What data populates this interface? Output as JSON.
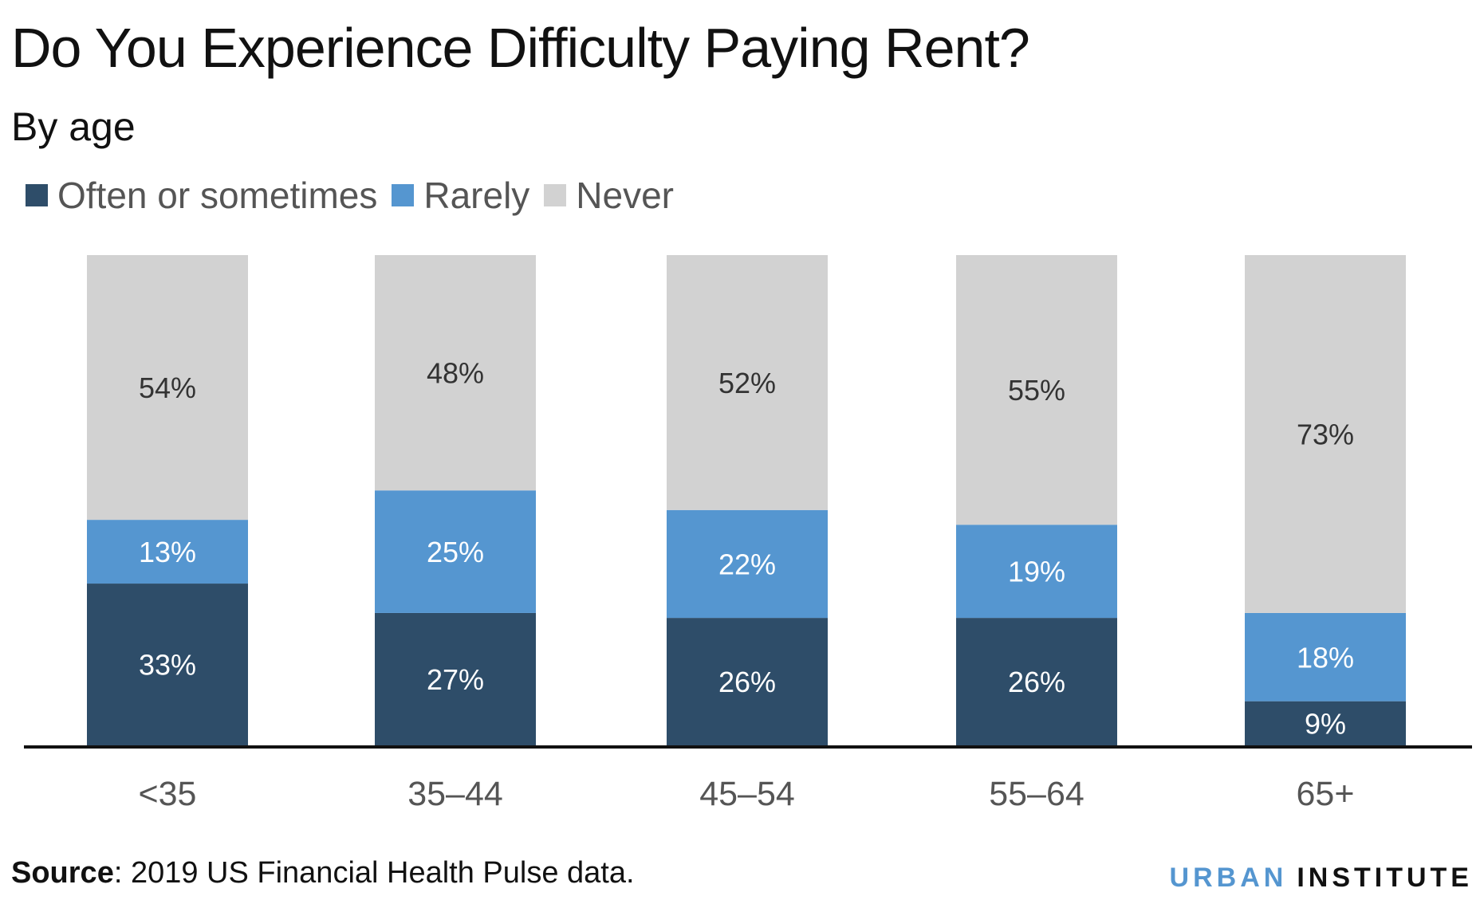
{
  "chart_data": {
    "type": "bar",
    "stacked": true,
    "title": "Do You Experience Difficulty Paying Rent?",
    "subtitle": "By age",
    "categories": [
      "<35",
      "35–44",
      "45–54",
      "55–64",
      "65+"
    ],
    "series": [
      {
        "name": "Often or sometimes",
        "values": [
          33,
          27,
          26,
          26,
          9
        ],
        "color": "#2e4d69",
        "label_color": "#ffffff"
      },
      {
        "name": "Rarely",
        "values": [
          13,
          25,
          22,
          19,
          18
        ],
        "color": "#5596d0",
        "label_color": "#ffffff"
      },
      {
        "name": "Never",
        "values": [
          54,
          48,
          52,
          55,
          73
        ],
        "color": "#d2d2d2",
        "label_color": "#333333"
      }
    ],
    "value_suffix": "%",
    "ylim": [
      0,
      100
    ],
    "grid": false,
    "legend_position": "top-left"
  },
  "source": {
    "label": "Source",
    "text": ": 2019 US Financial Health Pulse data."
  },
  "logo": {
    "part1": "URBAN",
    "part2": "INSTITUTE"
  }
}
